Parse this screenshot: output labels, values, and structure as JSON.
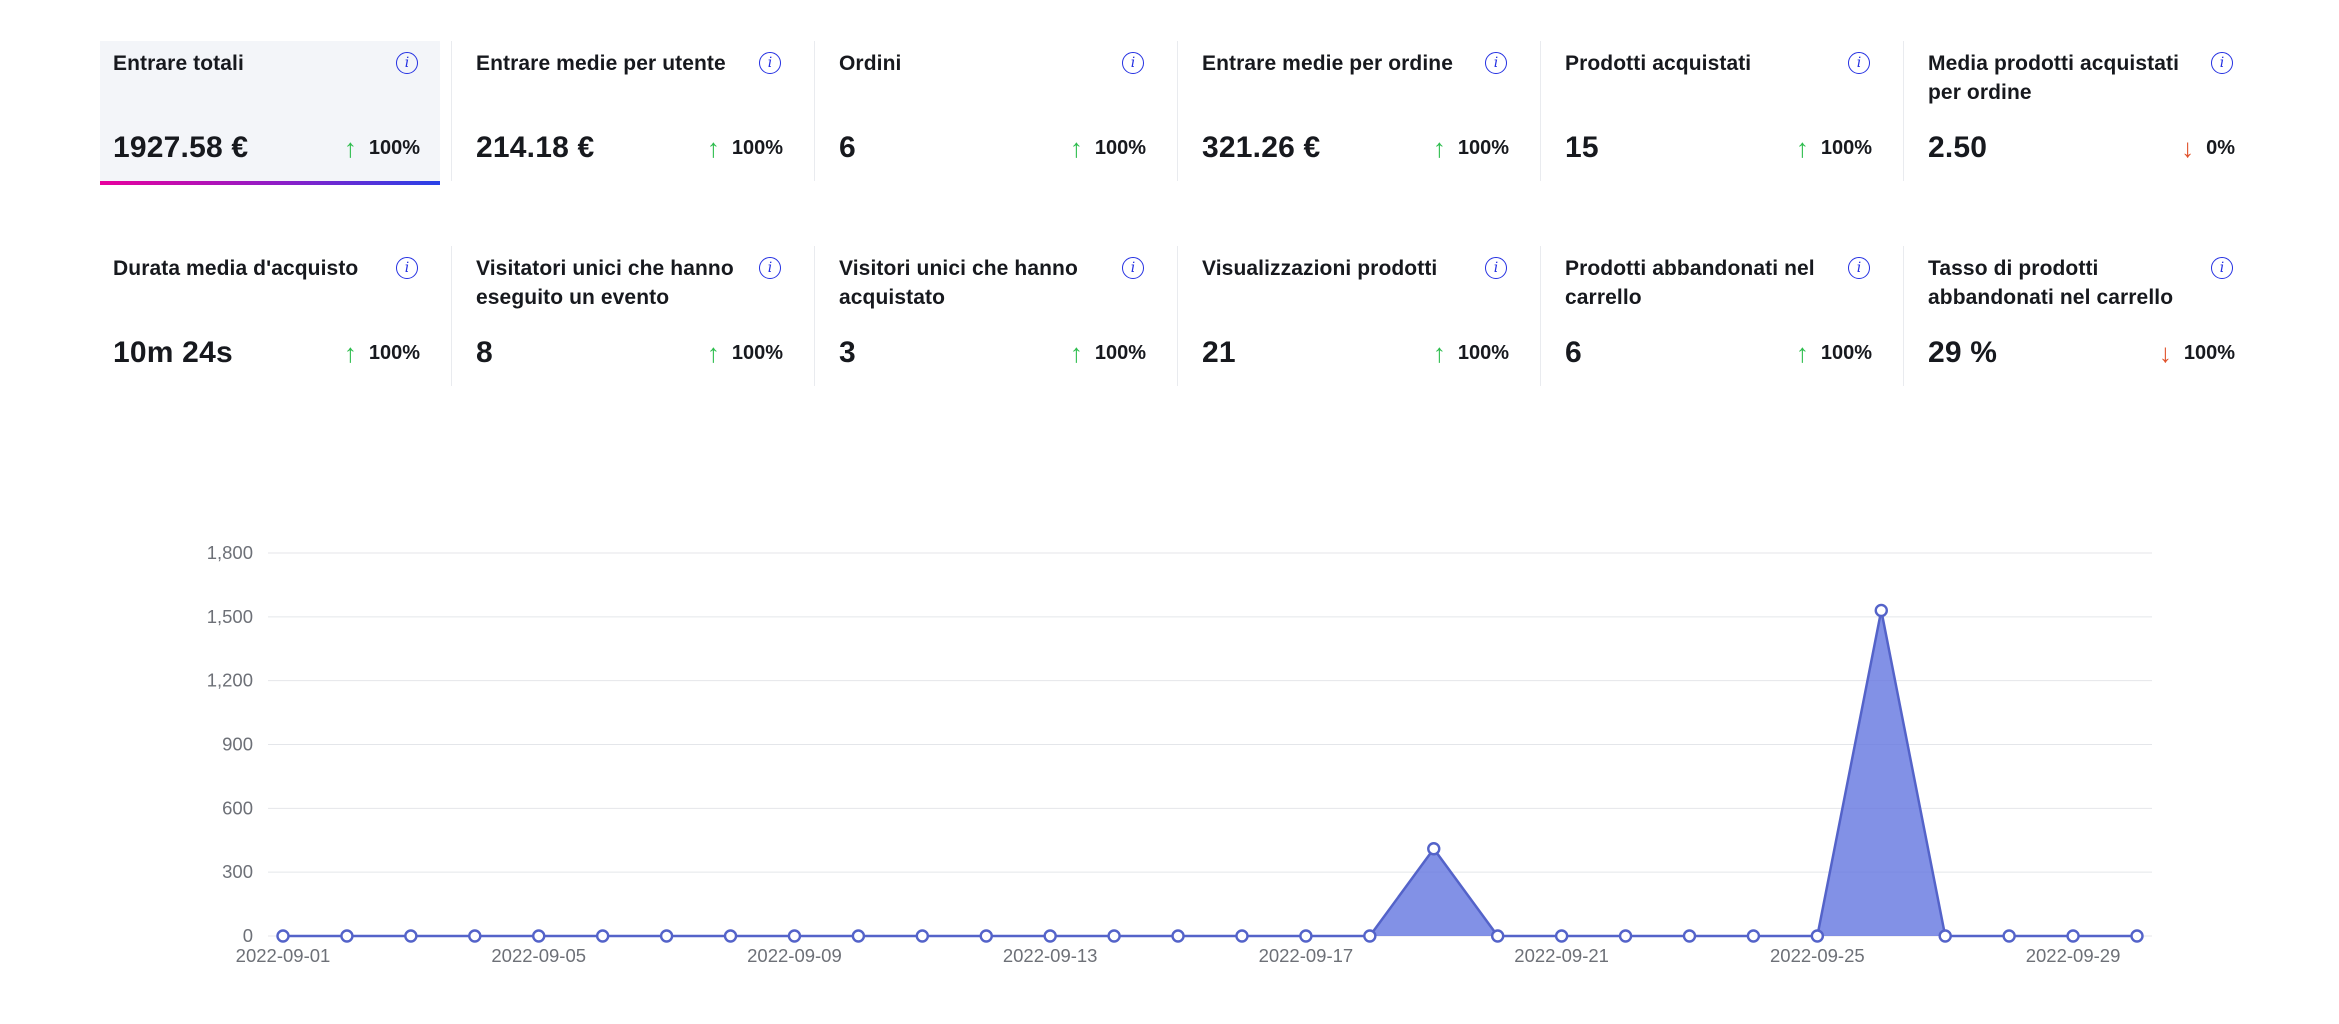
{
  "colors": {
    "accent_blue": "#2430e2",
    "trend_up_green": "#2ebd4e",
    "trend_down_red": "#e0522c",
    "selected_card_bg": "#f3f5f9",
    "selected_underline_gradient": [
      "#e8009d",
      "#2742e8"
    ],
    "chart_line": "#5463c9",
    "chart_fill": "rgba(99,117,224,0.8)",
    "grid_line": "#e4e6ea",
    "axis_text": "#6d7077"
  },
  "icons": {
    "info_glyph": "i"
  },
  "cards": [
    {
      "label": "Entrare totali",
      "value": "1927.58 €",
      "arrow": "↑",
      "pct": "100%"
    },
    {
      "label": "Entrare medie per utente",
      "value": "214.18 €",
      "arrow": "↑",
      "pct": "100%"
    },
    {
      "label": "Ordini",
      "value": "6",
      "arrow": "↑",
      "pct": "100%"
    },
    {
      "label": "Entrare medie per ordine",
      "value": "321.26 €",
      "arrow": "↑",
      "pct": "100%"
    },
    {
      "label": "Prodotti acquistati",
      "value": "15",
      "arrow": "↑",
      "pct": "100%"
    },
    {
      "label": "Media prodotti acquistati per ordine",
      "value": "2.50",
      "arrow": "↓",
      "pct": "0%"
    },
    {
      "label": "Durata media d'acquisto",
      "value": "10m 24s",
      "arrow": "↑",
      "pct": "100%"
    },
    {
      "label": "Visitatori unici che hanno eseguito un evento",
      "value": "8",
      "arrow": "↑",
      "pct": "100%"
    },
    {
      "label": "Visitori unici che hanno acquistato",
      "value": "3",
      "arrow": "↑",
      "pct": "100%"
    },
    {
      "label": "Visualizzazioni prodotti",
      "value": "21",
      "arrow": "↑",
      "pct": "100%"
    },
    {
      "label": "Prodotti abbandonati nel carrello",
      "value": "6",
      "arrow": "↑",
      "pct": "100%"
    },
    {
      "label": "Tasso di prodotti abbandonati nel carrello",
      "value": "29 %",
      "arrow": "↓",
      "pct": "100%"
    }
  ],
  "chart_data": {
    "type": "area",
    "x": [
      "2022-09-01",
      "2022-09-02",
      "2022-09-03",
      "2022-09-04",
      "2022-09-05",
      "2022-09-06",
      "2022-09-07",
      "2022-09-08",
      "2022-09-09",
      "2022-09-10",
      "2022-09-11",
      "2022-09-12",
      "2022-09-13",
      "2022-09-14",
      "2022-09-15",
      "2022-09-16",
      "2022-09-17",
      "2022-09-18",
      "2022-09-19",
      "2022-09-20",
      "2022-09-21",
      "2022-09-22",
      "2022-09-23",
      "2022-09-24",
      "2022-09-25",
      "2022-09-26",
      "2022-09-27",
      "2022-09-28",
      "2022-09-29",
      "2022-09-30"
    ],
    "values": [
      0,
      0,
      0,
      0,
      0,
      0,
      0,
      0,
      0,
      0,
      0,
      0,
      0,
      0,
      0,
      0,
      0,
      0,
      410,
      0,
      0,
      0,
      0,
      0,
      0,
      1530,
      0,
      0,
      0,
      0
    ],
    "title": "",
    "xlabel": "",
    "ylabel": "",
    "ylim": [
      0,
      1800
    ],
    "yticks": [
      0,
      300,
      600,
      900,
      1200,
      1500,
      1800
    ],
    "xtick_labels": [
      "2022-09-01",
      "2022-09-05",
      "2022-09-09",
      "2022-09-13",
      "2022-09-17",
      "2022-09-21",
      "2022-09-25",
      "2022-09-29"
    ],
    "xtick_every": 4,
    "grid": true,
    "legend": "none",
    "marker": "hollow-circle"
  }
}
